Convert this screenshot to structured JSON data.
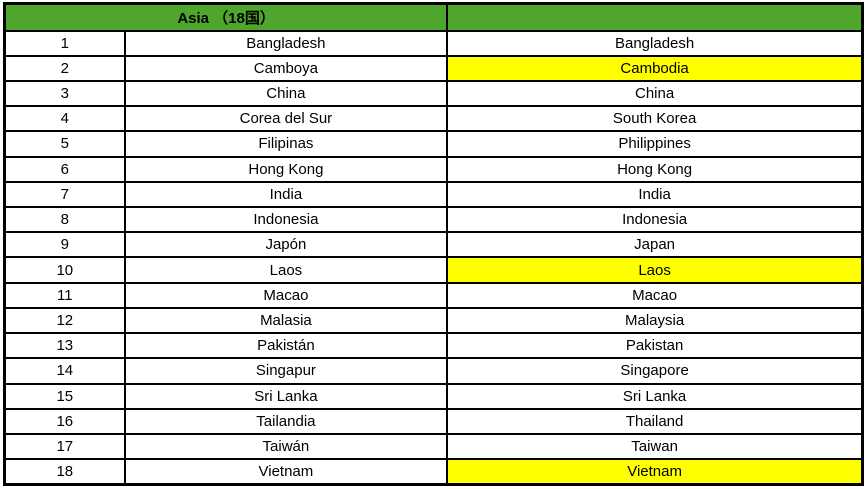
{
  "table": {
    "header": {
      "title": "Asia （18国）",
      "bg_color": "#4EA72C"
    },
    "highlight_color": "#FFFF00",
    "rows": [
      {
        "num": "1",
        "spanish": "Bangladesh",
        "english": "Bangladesh",
        "highlight": false
      },
      {
        "num": "2",
        "spanish": "Camboya",
        "english": "Cambodia",
        "highlight": true
      },
      {
        "num": "3",
        "spanish": "China",
        "english": "China",
        "highlight": false
      },
      {
        "num": "4",
        "spanish": "Corea del Sur",
        "english": "South Korea",
        "highlight": false
      },
      {
        "num": "5",
        "spanish": "Filipinas",
        "english": "Philippines",
        "highlight": false
      },
      {
        "num": "6",
        "spanish": "Hong Kong",
        "english": "Hong Kong",
        "highlight": false
      },
      {
        "num": "7",
        "spanish": "India",
        "english": "India",
        "highlight": false
      },
      {
        "num": "8",
        "spanish": "Indonesia",
        "english": "Indonesia",
        "highlight": false
      },
      {
        "num": "9",
        "spanish": "Japón",
        "english": "Japan",
        "highlight": false
      },
      {
        "num": "10",
        "spanish": "Laos",
        "english": "Laos",
        "highlight": true
      },
      {
        "num": "11",
        "spanish": "Macao",
        "english": "Macao",
        "highlight": false
      },
      {
        "num": "12",
        "spanish": "Malasia",
        "english": "Malaysia",
        "highlight": false
      },
      {
        "num": "13",
        "spanish": "Pakistán",
        "english": "Pakistan",
        "highlight": false
      },
      {
        "num": "14",
        "spanish": "Singapur",
        "english": "Singapore",
        "highlight": false
      },
      {
        "num": "15",
        "spanish": "Sri Lanka",
        "english": "Sri Lanka",
        "highlight": false
      },
      {
        "num": "16",
        "spanish": "Tailandia",
        "english": "Thailand",
        "highlight": false
      },
      {
        "num": "17",
        "spanish": "Taiwán",
        "english": "Taiwan",
        "highlight": false
      },
      {
        "num": "18",
        "spanish": "Vietnam",
        "english": "Vietnam",
        "highlight": true
      }
    ]
  }
}
